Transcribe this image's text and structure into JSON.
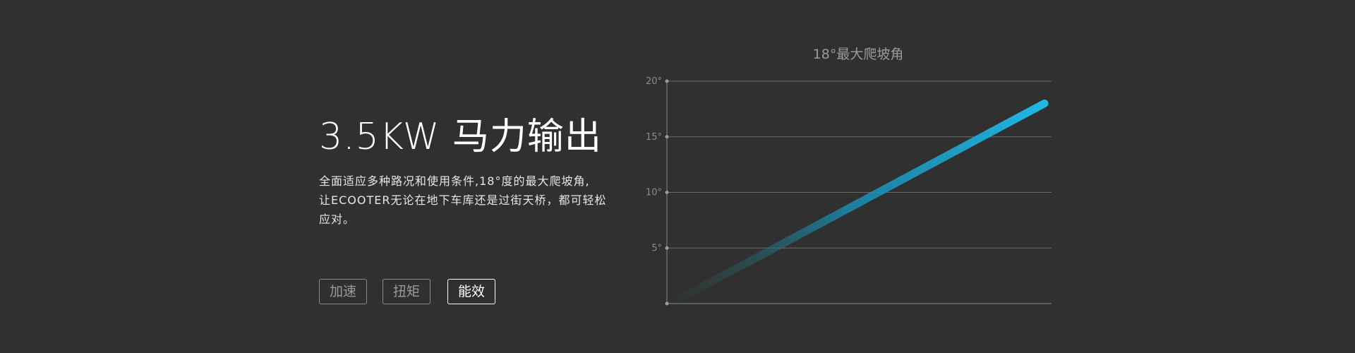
{
  "feature": {
    "heading": "3.5KW 马力输出",
    "description_lines": [
      "全面适应多种路况和使用条件,18°度的最大爬坡角,",
      "让ECOOTER无论在地下车库还是过街天桥，都可轻松",
      "应对。"
    ]
  },
  "tabs": [
    {
      "label": "加速",
      "active": false
    },
    {
      "label": "扭矩",
      "active": false
    },
    {
      "label": "能效",
      "active": true
    }
  ],
  "colors": {
    "background": "#303030",
    "accent": "#1fb8e6",
    "accent_start": "#2a5a50"
  },
  "chart_data": {
    "type": "line",
    "title": "18°最大爬坡角",
    "xlabel": "",
    "ylabel": "",
    "ylim": [
      0,
      20
    ],
    "y_ticks": [
      5,
      10,
      15,
      20
    ],
    "y_tick_labels": [
      "5°",
      "10°",
      "15°",
      "20°"
    ],
    "grid": true,
    "series": [
      {
        "x": [
          0,
          1
        ],
        "y": [
          0.5,
          18
        ]
      }
    ]
  }
}
